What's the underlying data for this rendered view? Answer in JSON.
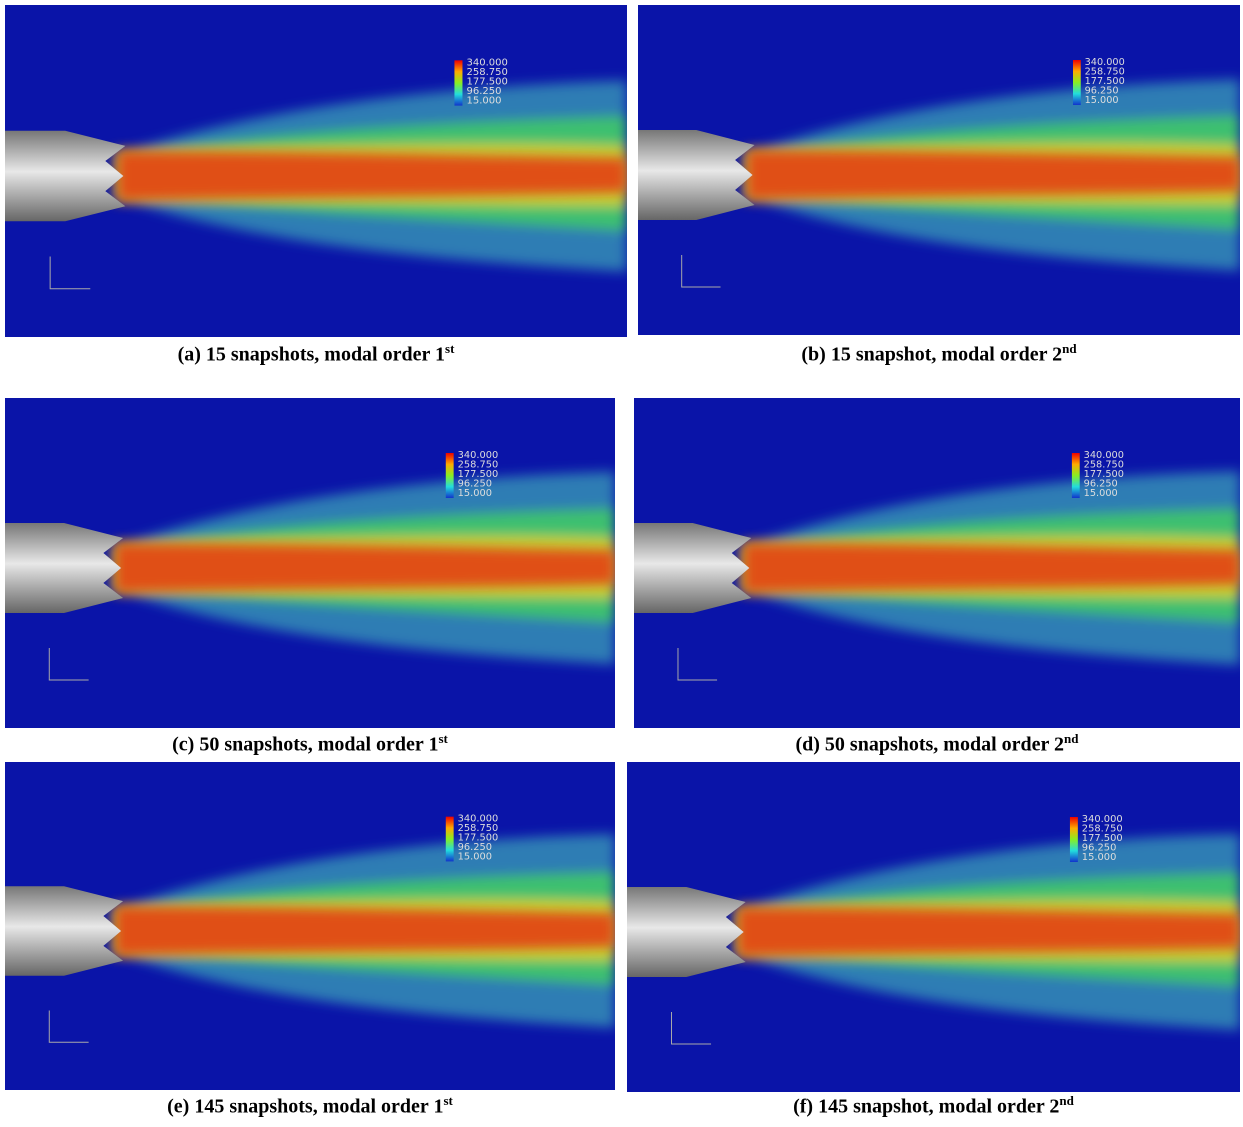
{
  "colorbar": {
    "ticks": [
      "340.000",
      "258.750",
      "177.500",
      "96.250",
      "15.000"
    ]
  },
  "panels": [
    {
      "caption": "(a) 15 snapshots, modal order 1",
      "sup": "st"
    },
    {
      "caption": "(b) 15 snapshot, modal order 2",
      "sup": "nd"
    },
    {
      "caption": "(c) 50 snapshots, modal order 1",
      "sup": "st"
    },
    {
      "caption": "(d) 50 snapshots, modal order 2",
      "sup": "nd"
    },
    {
      "caption": "(e) 145 snapshots, modal order 1",
      "sup": "st"
    },
    {
      "caption": "(f) 145 snapshot, modal order 2",
      "sup": "nd"
    }
  ]
}
